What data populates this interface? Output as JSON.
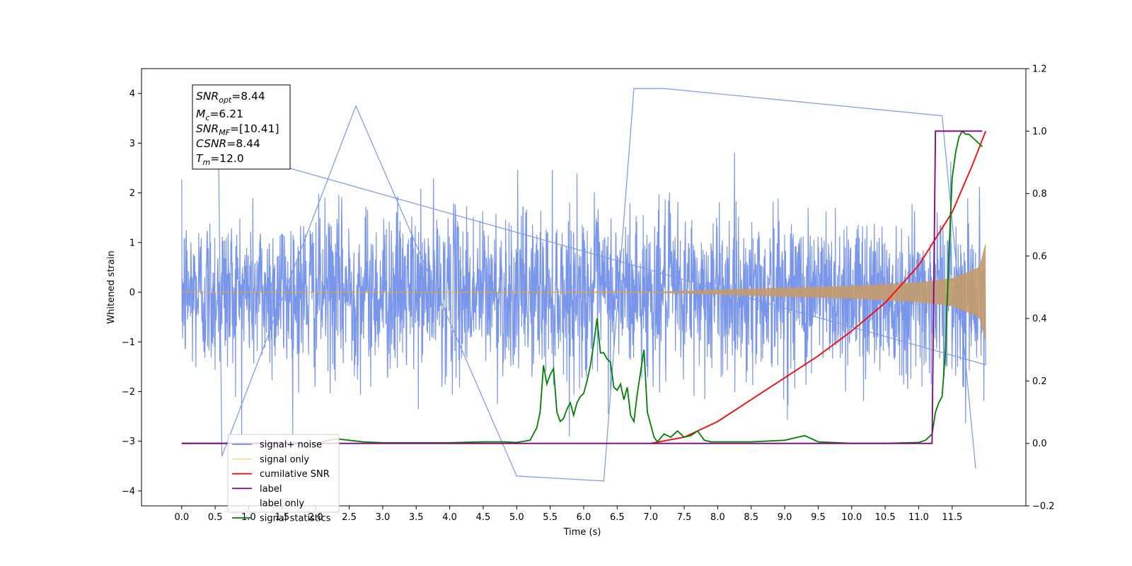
{
  "chart_data": {
    "type": "line",
    "xlabel": "Time (s)",
    "ylabel_left": "Whitened strain",
    "ylabel_right": "",
    "xlim": [
      -0.6,
      12.6
    ],
    "ylim_left": [
      -4.3,
      4.5
    ],
    "ylim_right": [
      -0.2,
      1.2
    ],
    "x_ticks": [
      "0.0",
      "0.5",
      "1.0",
      "1.5",
      "2.0",
      "2.5",
      "3.0",
      "3.5",
      "4.0",
      "4.5",
      "5.0",
      "5.5",
      "6.0",
      "6.5",
      "7.0",
      "7.5",
      "8.0",
      "8.5",
      "9.0",
      "9.5",
      "10.0",
      "10.5",
      "11.0",
      "11.5"
    ],
    "y_ticks_left": [
      "4",
      "3",
      "2",
      "1",
      "0",
      "−1",
      "−2",
      "−3",
      "−4"
    ],
    "y_ticks_right": [
      "1.2",
      "1.0",
      "0.8",
      "0.6",
      "0.4",
      "0.2",
      "0.0",
      "−0.2"
    ],
    "grid": false,
    "legend_position": "lower-left",
    "info_box": {
      "lines": [
        {
          "base": "SNR",
          "sub": "opt",
          "value": "=8.44"
        },
        {
          "base": "M",
          "sub": "c",
          "value": "=6.21"
        },
        {
          "base": "SNR",
          "sub": "MF",
          "value": "=[10.41]"
        },
        {
          "base": "CSNR",
          "sub": "",
          "value": "=8.44"
        },
        {
          "base": "T",
          "sub": "m",
          "value": "=12.0"
        }
      ]
    },
    "series": [
      {
        "name": "signal+ noise",
        "color": "#4169e1",
        "axis": "left",
        "style": "dense noise band",
        "duration_s": 12.0,
        "typical_envelope": [
          -2.3,
          2.5
        ],
        "peaks": [
          [
            0.55,
            2.9
          ],
          [
            0.6,
            -3.3
          ],
          [
            2.6,
            3.75
          ],
          [
            5.0,
            -3.7
          ],
          [
            6.3,
            -3.8
          ],
          [
            6.75,
            4.1
          ],
          [
            7.2,
            4.1
          ],
          [
            11.35,
            3.55
          ],
          [
            11.85,
            -3.55
          ]
        ]
      },
      {
        "name": "signal only",
        "color": "#ffa500",
        "axis": "left",
        "style": "chirp",
        "amplitude_profile": [
          [
            0.0,
            0.0
          ],
          [
            7.0,
            0.01
          ],
          [
            8.0,
            0.05
          ],
          [
            9.0,
            0.09
          ],
          [
            10.0,
            0.13
          ],
          [
            11.0,
            0.2
          ],
          [
            11.5,
            0.28
          ],
          [
            11.9,
            0.5
          ],
          [
            12.0,
            1.0
          ]
        ]
      },
      {
        "name": "cumilative SNR",
        "color": "#ff0000",
        "axis": "right",
        "x": [
          7.0,
          7.5,
          8.0,
          8.5,
          9.0,
          9.5,
          10.0,
          10.5,
          11.0,
          11.5,
          11.8,
          12.0
        ],
        "y": [
          0.0,
          0.02,
          0.07,
          0.14,
          0.21,
          0.28,
          0.36,
          0.45,
          0.57,
          0.74,
          0.89,
          1.0
        ]
      },
      {
        "name": "label",
        "color": "#800080",
        "axis": "right",
        "x": [
          0.0,
          11.2,
          11.25,
          11.95
        ],
        "y": [
          0.0,
          0.0,
          1.0,
          1.0
        ]
      },
      {
        "name": "label only",
        "color": "#ffffff",
        "axis": "right",
        "x": [],
        "y": []
      },
      {
        "name": "signal statistics",
        "color": "#008000",
        "axis": "right",
        "x": [
          0.0,
          2.0,
          2.2,
          2.3,
          2.5,
          2.7,
          3.0,
          4.0,
          4.5,
          4.8,
          5.0,
          5.2,
          5.3,
          5.35,
          5.4,
          5.45,
          5.5,
          5.55,
          5.6,
          5.65,
          5.7,
          5.75,
          5.8,
          5.85,
          5.9,
          5.95,
          6.0,
          6.05,
          6.1,
          6.15,
          6.2,
          6.25,
          6.3,
          6.35,
          6.4,
          6.45,
          6.5,
          6.55,
          6.6,
          6.65,
          6.7,
          6.75,
          6.8,
          6.85,
          6.9,
          6.95,
          7.0,
          7.05,
          7.1,
          7.2,
          7.3,
          7.4,
          7.5,
          7.6,
          7.7,
          7.8,
          7.9,
          8.0,
          8.5,
          9.0,
          9.2,
          9.3,
          9.5,
          10.0,
          10.5,
          11.0,
          11.1,
          11.2,
          11.25,
          11.3,
          11.35,
          11.4,
          11.45,
          11.5,
          11.55,
          11.6,
          11.65,
          11.7,
          11.75,
          11.8,
          11.85,
          11.9,
          11.95
        ],
        "y": [
          0.0,
          0.0,
          0.01,
          0.015,
          0.01,
          0.005,
          0.002,
          0.002,
          0.005,
          0.005,
          0.003,
          0.01,
          0.05,
          0.1,
          0.25,
          0.19,
          0.22,
          0.24,
          0.1,
          0.07,
          0.08,
          0.11,
          0.13,
          0.09,
          0.13,
          0.15,
          0.16,
          0.2,
          0.25,
          0.32,
          0.4,
          0.29,
          0.29,
          0.27,
          0.26,
          0.18,
          0.17,
          0.19,
          0.14,
          0.18,
          0.09,
          0.07,
          0.16,
          0.23,
          0.3,
          0.1,
          0.06,
          0.02,
          0.005,
          0.03,
          0.02,
          0.04,
          0.02,
          0.025,
          0.04,
          0.01,
          0.005,
          0.005,
          0.005,
          0.01,
          0.02,
          0.025,
          0.005,
          0.0,
          0.0,
          0.003,
          0.01,
          0.03,
          0.1,
          0.13,
          0.15,
          0.3,
          0.6,
          0.85,
          0.93,
          0.98,
          1.0,
          0.99,
          0.99,
          0.98,
          0.97,
          0.96,
          0.95
        ]
      }
    ]
  }
}
